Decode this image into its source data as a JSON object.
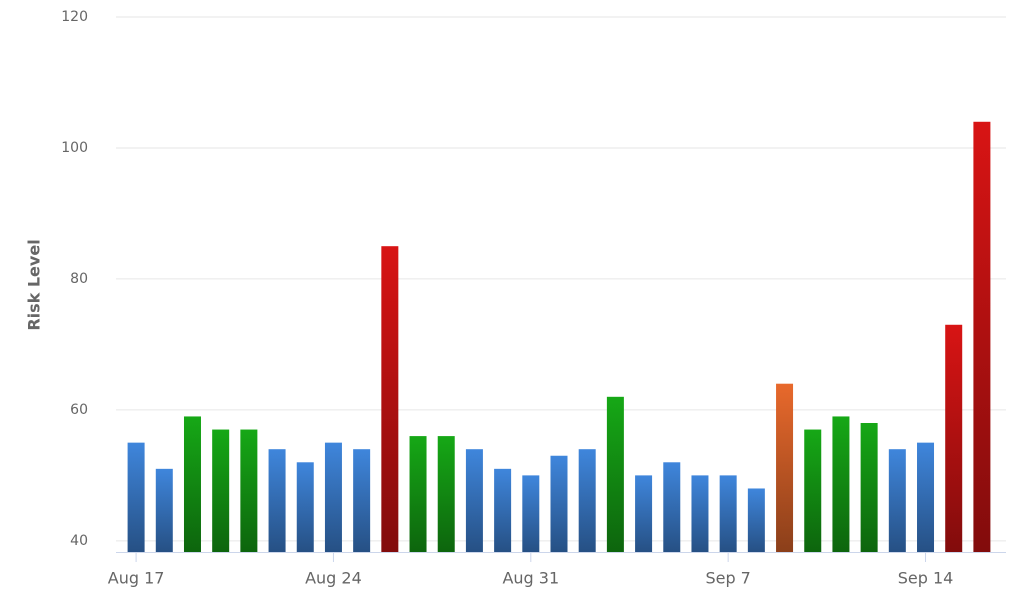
{
  "chart_data": {
    "type": "bar",
    "y_label": "Risk Level",
    "categories": [
      "Aug 17",
      null,
      null,
      null,
      null,
      null,
      null,
      "Aug 24",
      null,
      null,
      null,
      null,
      null,
      null,
      "Aug 31",
      null,
      null,
      null,
      null,
      null,
      null,
      "Sep 7",
      null,
      null,
      null,
      null,
      null,
      null,
      "Sep 14",
      null,
      null
    ],
    "values": [
      55,
      51,
      59,
      57,
      57,
      54,
      52,
      55,
      54,
      85,
      56,
      56,
      54,
      51,
      50,
      53,
      54,
      62,
      50,
      52,
      50,
      50,
      48,
      64,
      57,
      59,
      58,
      54,
      55,
      73,
      104
    ],
    "colors": [
      "#3f86dc",
      "#3f86dc",
      "#16a816",
      "#16a816",
      "#16a816",
      "#3f86dc",
      "#3f86dc",
      "#3f86dc",
      "#3f86dc",
      "#d81414",
      "#16a816",
      "#16a816",
      "#3f86dc",
      "#3f86dc",
      "#3f86dc",
      "#3f86dc",
      "#3f86dc",
      "#16a816",
      "#3f86dc",
      "#3f86dc",
      "#3f86dc",
      "#3f86dc",
      "#3f86dc",
      "#e8692c",
      "#16a816",
      "#16a816",
      "#16a816",
      "#3f86dc",
      "#3f86dc",
      "#d81414",
      "#d81414"
    ],
    "ylim": [
      38.3,
      120
    ],
    "yticks": [
      40,
      60,
      80,
      100,
      120
    ],
    "grid": true
  }
}
